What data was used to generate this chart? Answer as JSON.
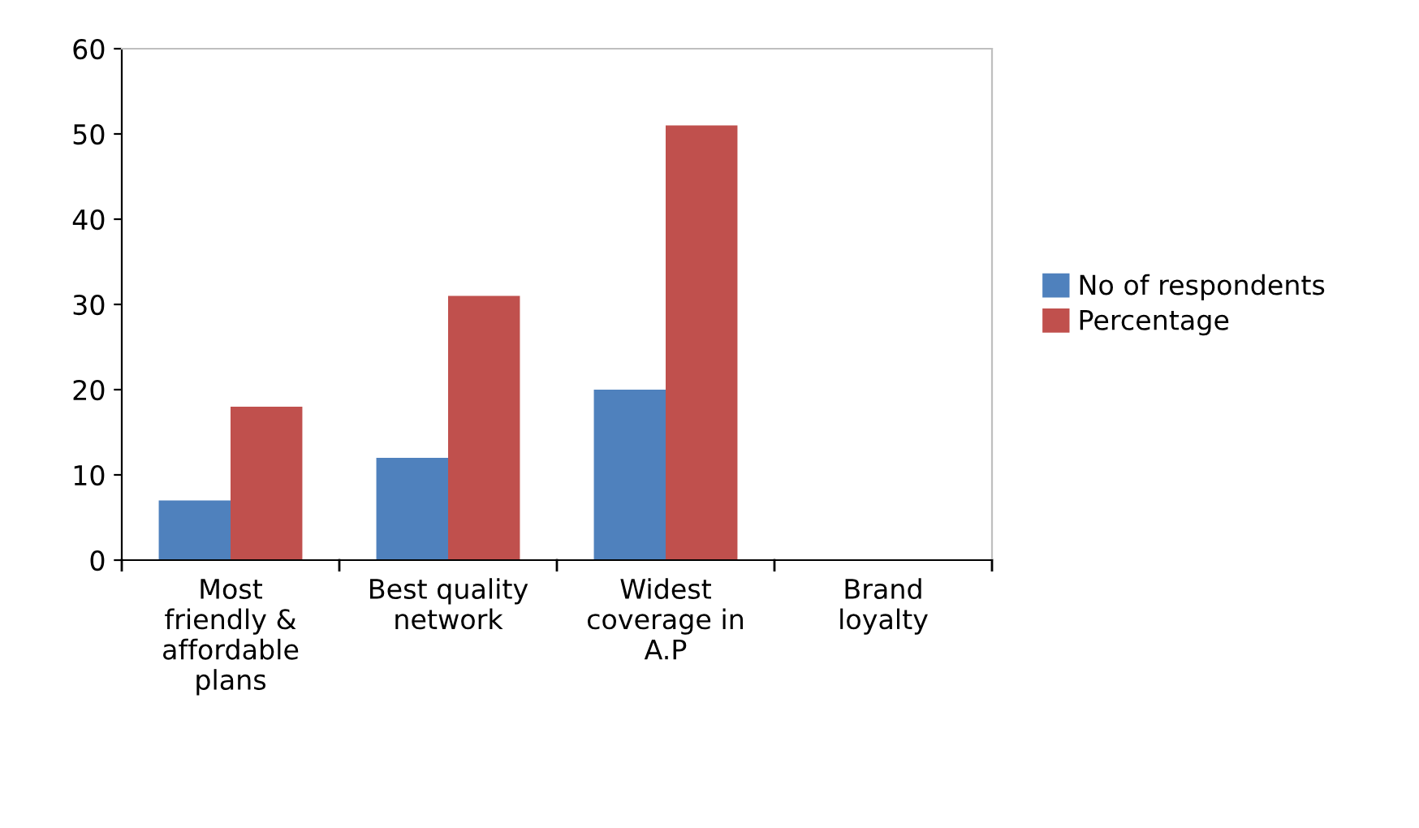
{
  "chart_data": {
    "type": "bar",
    "categories": [
      "Most\nfriendly &\naffordable\nplans",
      "Best quality\nnetwork",
      "Widest\ncoverage in\nA.P",
      "Brand\nloyalty"
    ],
    "series": [
      {
        "name": "No of respondents",
        "color": "#4f81bd",
        "values": [
          7,
          12,
          20,
          0
        ]
      },
      {
        "name": "Percentage",
        "color": "#c0504d",
        "values": [
          18,
          31,
          51,
          0
        ]
      }
    ],
    "ylim": [
      0,
      60
    ],
    "yticks": [
      0,
      10,
      20,
      30,
      40,
      50,
      60
    ],
    "grid": false,
    "legend": "right"
  }
}
